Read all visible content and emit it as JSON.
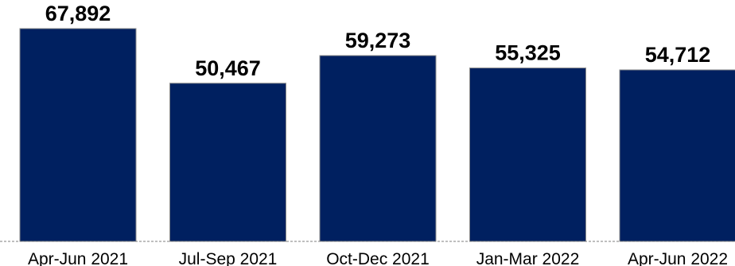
{
  "chart_data": {
    "type": "bar",
    "title": "",
    "xlabel": "",
    "ylabel": "",
    "categories": [
      "Apr-Jun 2021",
      "Jul-Sep 2021",
      "Oct-Dec 2021",
      "Jan-Mar 2022",
      "Apr-Jun 2022"
    ],
    "values": [
      67892,
      50467,
      59273,
      55325,
      54712
    ],
    "value_labels": [
      "67,892",
      "50,467",
      "59,273",
      "55,325",
      "54,712"
    ],
    "ylim": [
      0,
      77000
    ],
    "grid": false,
    "legend": "none",
    "colors": {
      "bar": "#002060",
      "bar_outline": "#8c8c8c",
      "axis": "#7f7f7f"
    }
  }
}
